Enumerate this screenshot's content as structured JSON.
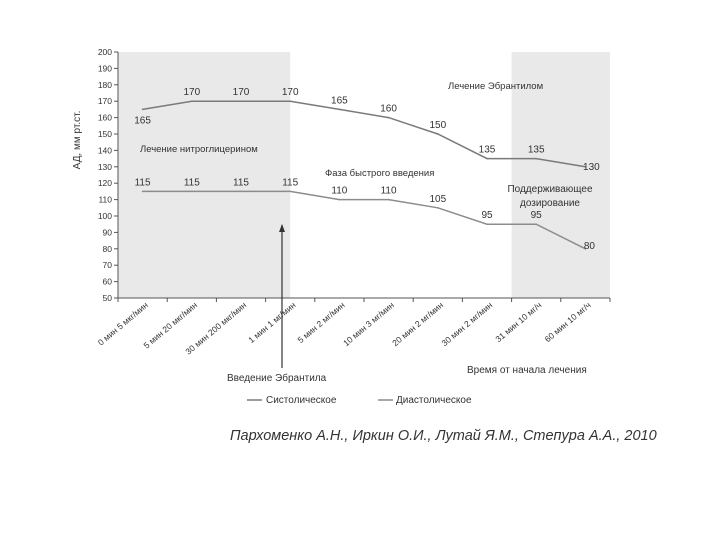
{
  "chart_data": {
    "type": "line",
    "ylabel": "АД, мм рт.ст.",
    "ylim": [
      50,
      200
    ],
    "yticks": [
      50,
      60,
      70,
      80,
      90,
      100,
      110,
      120,
      130,
      140,
      150,
      160,
      170,
      180,
      190,
      200
    ],
    "categories": [
      "0 мин 5 мкг/мин",
      "5 мин 20 мкг/мин",
      "30 мин 200 мкг/мин",
      "1 мин 1 мг/мин",
      "5 мин 2 мг/мин",
      "10 мин 3 мг/мин",
      "20 мин 2 мг/мин",
      "30 мин 2 мг/мин",
      "31 мин 10 мг/ч",
      "60 мин 10 мг/ч"
    ],
    "series": [
      {
        "name": "Систолическое",
        "values": [
          165,
          170,
          170,
          170,
          165,
          160,
          150,
          135,
          135,
          130
        ],
        "labels": [
          "165",
          "170",
          "170",
          "170",
          "165",
          "160",
          "150",
          "135",
          "135",
          "130"
        ],
        "color": "#7a7a7a"
      },
      {
        "name": "Диастолическое",
        "values": [
          115,
          115,
          115,
          115,
          110,
          110,
          105,
          95,
          95,
          80
        ],
        "labels": [
          "115",
          "115",
          "115",
          "115",
          "110",
          "110",
          "105",
          "95",
          "95",
          "80"
        ],
        "color": "#8c8c8c"
      }
    ],
    "shaded_regions": [
      {
        "from": 0,
        "to": 3,
        "color": "#e9e9e9"
      },
      {
        "from": 8,
        "to": 9,
        "color": "#e9e9e9"
      }
    ],
    "annotations": {
      "nitro": "Лечение нитроглицерином",
      "ebrantil": "Лечение Эбрантилом",
      "fast_phase": "Фаза быстрого введения",
      "maint_1": "Поддерживающее",
      "maint_2": "дозирование",
      "intro": "Введение Эбрантила",
      "time": "Время от начала лечения"
    },
    "legend_position": "bottom"
  },
  "citation": "Пархоменко А.Н., Иркин О.И., Лутай Я.М., Степура А.А., 2010"
}
